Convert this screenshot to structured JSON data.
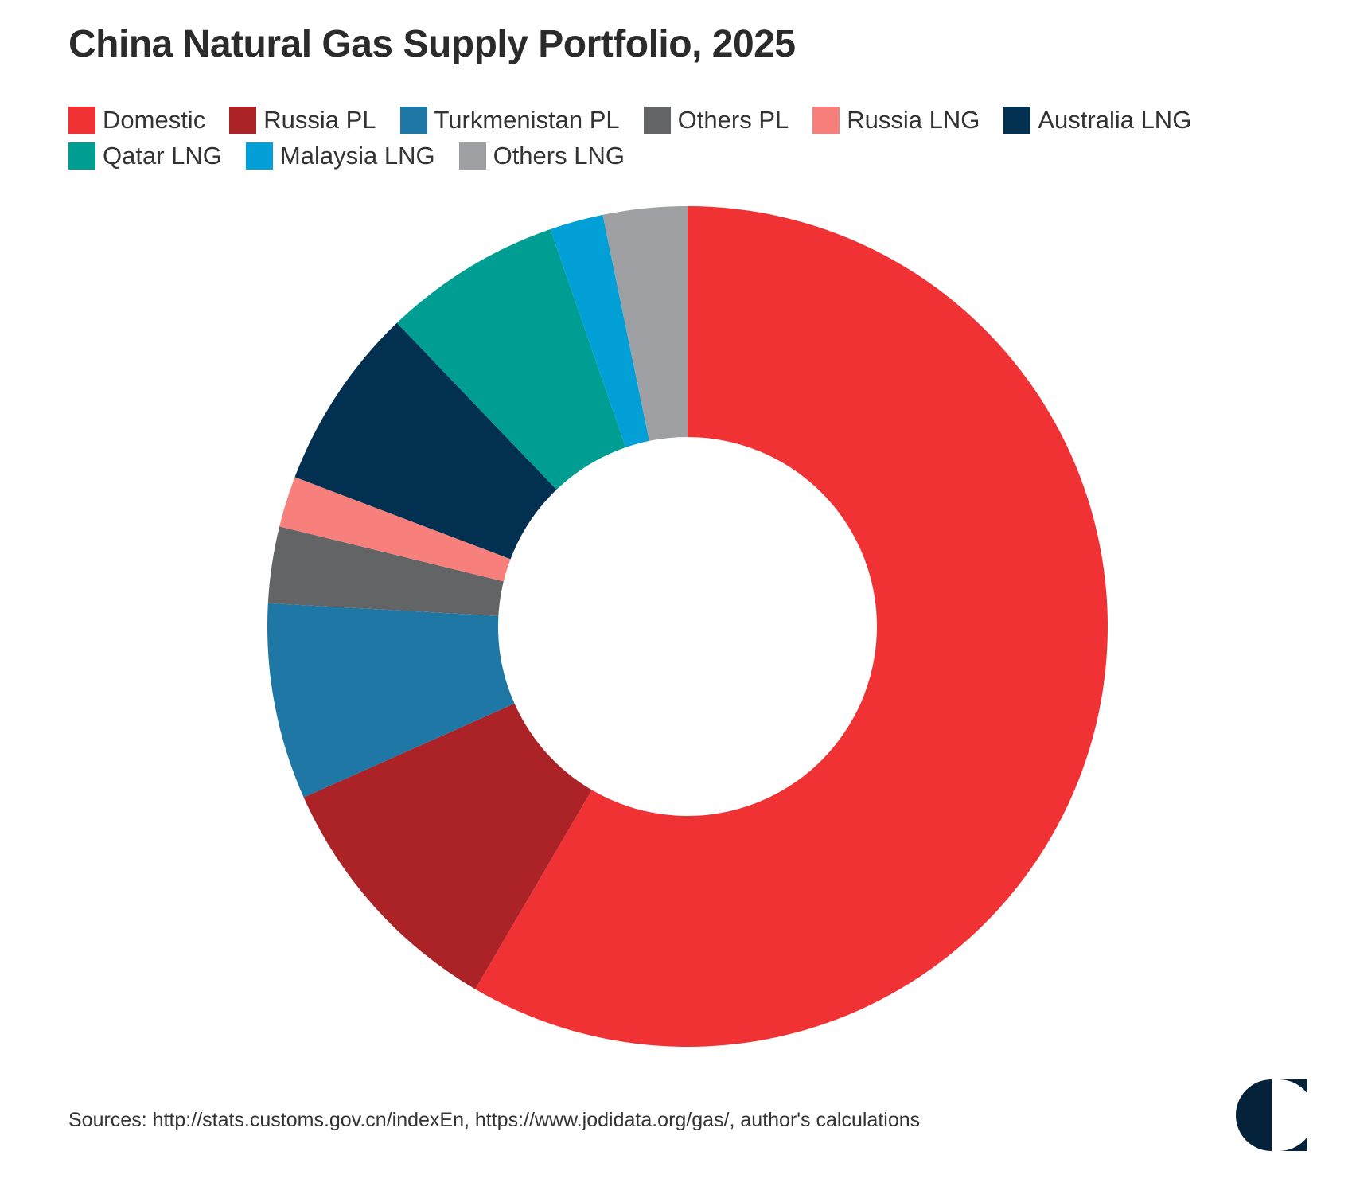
{
  "title": "China Natural Gas Supply Portfolio, 2025",
  "source": "Sources: http://stats.customs.gov.cn/indexEn, https://www.jodidata.org/gas/, author's calculations",
  "colors": {
    "Domestic": "#f03235",
    "Russia PL": "#ab2327",
    "Turkmenistan PL": "#1f77a6",
    "Others PL": "#636466",
    "Russia LNG": "#f77f7c",
    "Australia LNG": "#023050",
    "Qatar LNG": "#009e92",
    "Malaysia LNG": "#03a0d8",
    "Others LNG": "#9ea0a3",
    "logo": "#04223a"
  },
  "legend_rows": [
    [
      "Domestic",
      "Russia PL",
      "Turkmenistan PL",
      "Others PL",
      "Russia LNG",
      "Australia LNG"
    ],
    [
      "Qatar LNG",
      "Malaysia LNG",
      "Others LNG"
    ]
  ],
  "chart_data": {
    "type": "pie",
    "donut": true,
    "legend_position": "top-left",
    "categories": [
      "Domestic",
      "Russia PL",
      "Turkmenistan PL",
      "Others PL",
      "Russia LNG",
      "Australia LNG",
      "Qatar LNG",
      "Malaysia LNG",
      "Others LNG"
    ],
    "values": [
      59.6,
      10.1,
      7.7,
      3.0,
      2.0,
      7.2,
      7.0,
      2.1,
      3.3
    ],
    "unit": "percent share (estimated)"
  }
}
